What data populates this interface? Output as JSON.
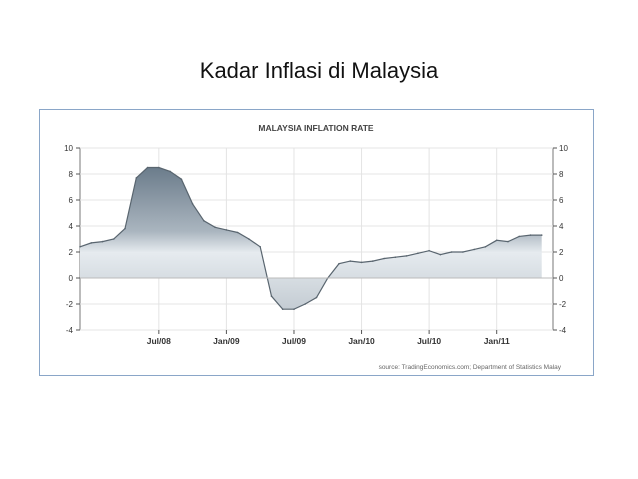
{
  "slide": {
    "title": "Kadar Inflasi di Malaysia"
  },
  "chart_data": {
    "type": "area",
    "title": "MALAYSIA INFLATION RATE",
    "source": "source: TradingEconomics.com; Department of Statistics Malay",
    "ylim": [
      -4,
      10
    ],
    "yticks": [
      -4,
      -2,
      0,
      2,
      4,
      6,
      8,
      10
    ],
    "xlim": [
      "2007-12",
      "2011-06"
    ],
    "xticks": [
      {
        "x": "2008-07",
        "label": "Jul/08"
      },
      {
        "x": "2009-01",
        "label": "Jan/09"
      },
      {
        "x": "2009-07",
        "label": "Jul/09"
      },
      {
        "x": "2010-01",
        "label": "Jan/10"
      },
      {
        "x": "2010-07",
        "label": "Jul/10"
      },
      {
        "x": "2011-01",
        "label": "Jan/11"
      }
    ],
    "grid": true,
    "series": [
      {
        "x": [
          "2007-12",
          "2008-01",
          "2008-02",
          "2008-03",
          "2008-04",
          "2008-05",
          "2008-06",
          "2008-07",
          "2008-08",
          "2008-09",
          "2008-10",
          "2008-11",
          "2008-12",
          "2009-01",
          "2009-02",
          "2009-03",
          "2009-04",
          "2009-05",
          "2009-06",
          "2009-07",
          "2009-08",
          "2009-09",
          "2009-10",
          "2009-11",
          "2009-12",
          "2010-01",
          "2010-02",
          "2010-03",
          "2010-04",
          "2010-05",
          "2010-06",
          "2010-07",
          "2010-08",
          "2010-09",
          "2010-10",
          "2010-11",
          "2010-12",
          "2011-01",
          "2011-02",
          "2011-03",
          "2011-04",
          "2011-05"
        ],
        "values": [
          2.4,
          2.7,
          2.8,
          3.0,
          3.8,
          7.7,
          8.5,
          8.5,
          8.2,
          7.6,
          5.7,
          4.4,
          3.9,
          3.7,
          3.5,
          3.0,
          2.4,
          -1.4,
          -2.4,
          -2.4,
          -2.0,
          -1.5,
          0.0,
          1.1,
          1.3,
          1.2,
          1.3,
          1.5,
          1.6,
          1.7,
          1.9,
          2.1,
          1.8,
          2.0,
          2.0,
          2.2,
          2.4,
          2.9,
          2.8,
          3.2,
          3.3,
          3.3
        ]
      }
    ]
  }
}
